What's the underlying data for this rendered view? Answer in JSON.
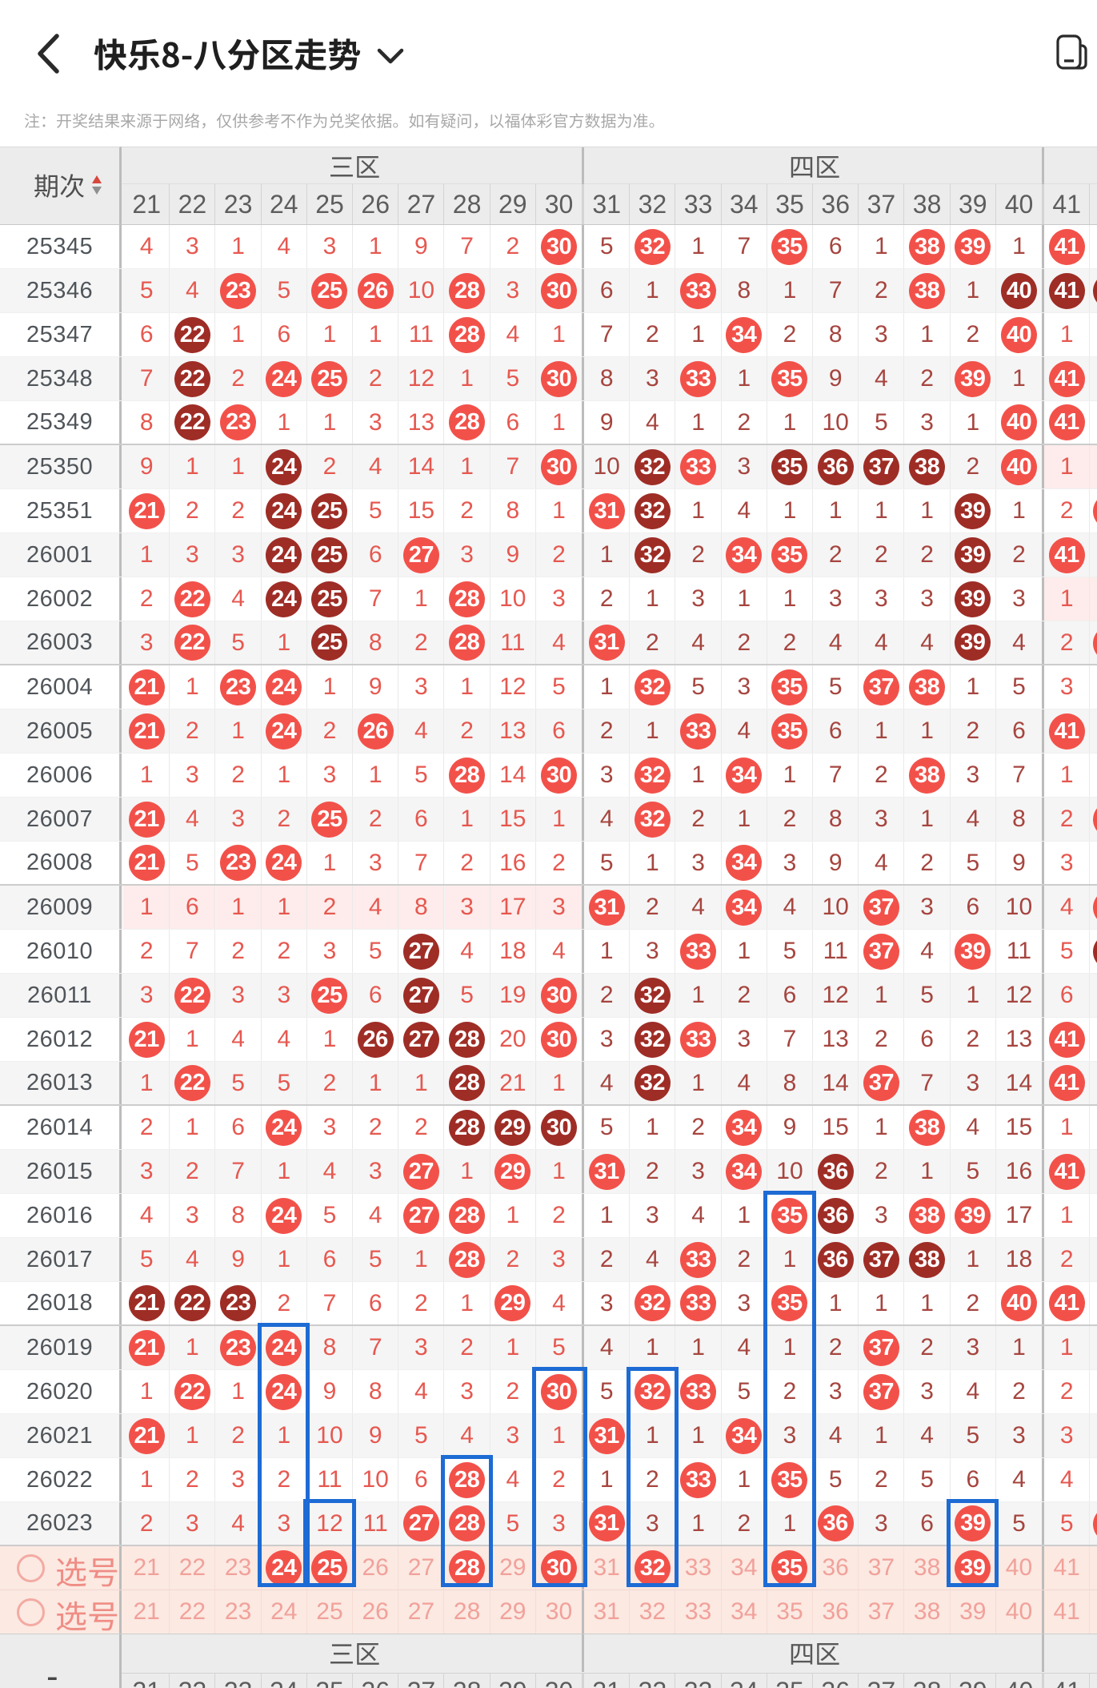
{
  "header": {
    "title": "快乐8-八分区走势",
    "back_icon": "chevron-left",
    "title_dropdown_icon": "chevron-down",
    "screen_cast_icon": "multi-screen"
  },
  "notice": "注：开奖结果来源于网络，仅供参考不作为兑奖依据。如有疑问，以福体彩官方数据为准。",
  "colors": {
    "ball_bright": "#f2514a",
    "ball_dark": "#9e2d26",
    "miss_zone_odd": "#e65850",
    "miss_zone_even": "#a6453f",
    "selection_blue": "#1d6bd4",
    "empty_zone_pink": "#fdeceb",
    "pick_row_pink": "#fbe9e2",
    "pick_text_pink": "#f1a19a"
  },
  "chart_data": {
    "type": "table",
    "title": "快乐8-八分区走势",
    "period_header": "期次",
    "zone_headers": [
      {
        "label": "三区",
        "columns": [
          21,
          22,
          23,
          24,
          25,
          26,
          27,
          28,
          29,
          30
        ]
      },
      {
        "label": "四区",
        "columns": [
          31,
          32,
          33,
          34,
          35,
          36,
          37,
          38,
          39,
          40
        ]
      },
      {
        "label": "",
        "columns": [
          41
        ]
      }
    ],
    "number_columns": [
      21,
      22,
      23,
      24,
      25,
      26,
      27,
      28,
      29,
      30,
      31,
      32,
      33,
      34,
      35,
      36,
      37,
      38,
      39,
      40,
      41
    ],
    "cell_legend": {
      "B": "drawn-ball-bright-red",
      "D": "drawn-ball-dark-red",
      "numeric": "miss-count"
    },
    "rows": [
      {
        "period": "25345",
        "cells": [
          "4",
          "3",
          "1",
          "4",
          "3",
          "1",
          "9",
          "7",
          "2",
          "B",
          "5",
          "B",
          "1",
          "7",
          "B",
          "6",
          "1",
          "B",
          "B",
          "1",
          "B"
        ],
        "overflow_ball": null,
        "empty_zones": []
      },
      {
        "period": "25346",
        "cells": [
          "5",
          "4",
          "B",
          "5",
          "B",
          "B",
          "10",
          "B",
          "3",
          "B",
          "6",
          "1",
          "B",
          "8",
          "1",
          "7",
          "2",
          "B",
          "1",
          "D",
          "D"
        ],
        "overflow_ball": "D",
        "empty_zones": []
      },
      {
        "period": "25347",
        "cells": [
          "6",
          "D",
          "1",
          "6",
          "1",
          "1",
          "11",
          "B",
          "4",
          "1",
          "7",
          "2",
          "1",
          "B",
          "2",
          "8",
          "3",
          "1",
          "2",
          "B",
          "1"
        ],
        "overflow_ball": null,
        "empty_zones": []
      },
      {
        "period": "25348",
        "cells": [
          "7",
          "D",
          "2",
          "B",
          "B",
          "2",
          "12",
          "1",
          "5",
          "B",
          "8",
          "3",
          "B",
          "1",
          "B",
          "9",
          "4",
          "2",
          "B",
          "1",
          "B"
        ],
        "overflow_ball": null,
        "empty_zones": []
      },
      {
        "period": "25349",
        "cells": [
          "8",
          "D",
          "B",
          "1",
          "1",
          "3",
          "13",
          "B",
          "6",
          "1",
          "9",
          "4",
          "1",
          "2",
          "1",
          "10",
          "5",
          "3",
          "1",
          "B",
          "B"
        ],
        "overflow_ball": null,
        "empty_zones": []
      },
      {
        "period": "25350",
        "cells": [
          "9",
          "1",
          "1",
          "D",
          "2",
          "4",
          "14",
          "1",
          "7",
          "B",
          "10",
          "D",
          "B",
          "3",
          "D",
          "D",
          "D",
          "D",
          "2",
          "B",
          "1"
        ],
        "overflow_ball": null,
        "empty_zones": [
          2
        ]
      },
      {
        "period": "25351",
        "cells": [
          "B",
          "2",
          "2",
          "D",
          "D",
          "5",
          "15",
          "2",
          "8",
          "1",
          "B",
          "D",
          "1",
          "4",
          "1",
          "1",
          "1",
          "1",
          "D",
          "1",
          "2"
        ],
        "overflow_ball": "B",
        "empty_zones": []
      },
      {
        "period": "26001",
        "cells": [
          "1",
          "3",
          "3",
          "D",
          "D",
          "6",
          "B",
          "3",
          "9",
          "2",
          "1",
          "D",
          "2",
          "B",
          "B",
          "2",
          "2",
          "2",
          "D",
          "2",
          "B"
        ],
        "overflow_ball": null,
        "empty_zones": []
      },
      {
        "period": "26002",
        "cells": [
          "2",
          "B",
          "4",
          "D",
          "D",
          "7",
          "1",
          "B",
          "10",
          "3",
          "2",
          "1",
          "3",
          "1",
          "1",
          "3",
          "3",
          "3",
          "D",
          "3",
          "1"
        ],
        "overflow_ball": null,
        "empty_zones": [
          2
        ]
      },
      {
        "period": "26003",
        "cells": [
          "3",
          "B",
          "5",
          "1",
          "D",
          "8",
          "2",
          "B",
          "11",
          "4",
          "B",
          "2",
          "4",
          "2",
          "2",
          "4",
          "4",
          "4",
          "D",
          "4",
          "2"
        ],
        "overflow_ball": "B",
        "empty_zones": []
      },
      {
        "period": "26004",
        "cells": [
          "B",
          "1",
          "B",
          "B",
          "1",
          "9",
          "3",
          "1",
          "12",
          "5",
          "1",
          "B",
          "5",
          "3",
          "B",
          "5",
          "B",
          "B",
          "1",
          "5",
          "3"
        ],
        "overflow_ball": null,
        "empty_zones": []
      },
      {
        "period": "26005",
        "cells": [
          "B",
          "2",
          "1",
          "B",
          "2",
          "B",
          "4",
          "2",
          "13",
          "6",
          "2",
          "1",
          "B",
          "4",
          "B",
          "6",
          "1",
          "1",
          "2",
          "6",
          "B"
        ],
        "overflow_ball": null,
        "empty_zones": []
      },
      {
        "period": "26006",
        "cells": [
          "1",
          "3",
          "2",
          "1",
          "3",
          "1",
          "5",
          "B",
          "14",
          "B",
          "3",
          "B",
          "1",
          "B",
          "1",
          "7",
          "2",
          "B",
          "3",
          "7",
          "1"
        ],
        "overflow_ball": null,
        "empty_zones": []
      },
      {
        "period": "26007",
        "cells": [
          "B",
          "4",
          "3",
          "2",
          "B",
          "2",
          "6",
          "1",
          "15",
          "1",
          "4",
          "B",
          "2",
          "1",
          "2",
          "8",
          "3",
          "1",
          "4",
          "8",
          "2"
        ],
        "overflow_ball": "B",
        "empty_zones": []
      },
      {
        "period": "26008",
        "cells": [
          "B",
          "5",
          "B",
          "B",
          "1",
          "3",
          "7",
          "2",
          "16",
          "2",
          "5",
          "1",
          "3",
          "B",
          "3",
          "9",
          "4",
          "2",
          "5",
          "9",
          "3"
        ],
        "overflow_ball": null,
        "empty_zones": []
      },
      {
        "period": "26009",
        "cells": [
          "1",
          "6",
          "1",
          "1",
          "2",
          "4",
          "8",
          "3",
          "17",
          "3",
          "B",
          "2",
          "4",
          "B",
          "4",
          "10",
          "B",
          "3",
          "6",
          "10",
          "4"
        ],
        "overflow_ball": "B",
        "empty_zones": [
          0
        ]
      },
      {
        "period": "26010",
        "cells": [
          "2",
          "7",
          "2",
          "2",
          "3",
          "5",
          "D",
          "4",
          "18",
          "4",
          "1",
          "3",
          "B",
          "1",
          "5",
          "11",
          "B",
          "4",
          "B",
          "11",
          "5"
        ],
        "overflow_ball": "D",
        "empty_zones": []
      },
      {
        "period": "26011",
        "cells": [
          "3",
          "B",
          "3",
          "3",
          "B",
          "6",
          "D",
          "5",
          "19",
          "B",
          "2",
          "D",
          "1",
          "2",
          "6",
          "12",
          "1",
          "5",
          "1",
          "12",
          "6"
        ],
        "overflow_ball": null,
        "empty_zones": []
      },
      {
        "period": "26012",
        "cells": [
          "B",
          "1",
          "4",
          "4",
          "1",
          "D",
          "D",
          "D",
          "20",
          "B",
          "3",
          "D",
          "B",
          "3",
          "7",
          "13",
          "2",
          "6",
          "2",
          "13",
          "B"
        ],
        "overflow_ball": null,
        "empty_zones": []
      },
      {
        "period": "26013",
        "cells": [
          "1",
          "B",
          "5",
          "5",
          "2",
          "1",
          "1",
          "D",
          "21",
          "1",
          "4",
          "D",
          "1",
          "4",
          "8",
          "14",
          "B",
          "7",
          "3",
          "14",
          "B"
        ],
        "overflow_ball": null,
        "empty_zones": []
      },
      {
        "period": "26014",
        "cells": [
          "2",
          "1",
          "6",
          "B",
          "3",
          "2",
          "2",
          "D",
          "D",
          "D",
          "5",
          "1",
          "2",
          "B",
          "9",
          "15",
          "1",
          "B",
          "4",
          "15",
          "1"
        ],
        "overflow_ball": null,
        "empty_zones": []
      },
      {
        "period": "26015",
        "cells": [
          "3",
          "2",
          "7",
          "1",
          "4",
          "3",
          "B",
          "1",
          "B",
          "1",
          "B",
          "2",
          "3",
          "B",
          "10",
          "D",
          "2",
          "1",
          "5",
          "16",
          "B"
        ],
        "overflow_ball": null,
        "empty_zones": []
      },
      {
        "period": "26016",
        "cells": [
          "4",
          "3",
          "8",
          "B",
          "5",
          "4",
          "B",
          "B",
          "1",
          "2",
          "1",
          "3",
          "4",
          "1",
          "B",
          "D",
          "3",
          "B",
          "B",
          "17",
          "1"
        ],
        "overflow_ball": null,
        "empty_zones": []
      },
      {
        "period": "26017",
        "cells": [
          "5",
          "4",
          "9",
          "1",
          "6",
          "5",
          "1",
          "B",
          "2",
          "3",
          "2",
          "4",
          "B",
          "2",
          "1",
          "D",
          "D",
          "D",
          "1",
          "18",
          "2"
        ],
        "overflow_ball": null,
        "empty_zones": []
      },
      {
        "period": "26018",
        "cells": [
          "D",
          "D",
          "D",
          "2",
          "7",
          "6",
          "2",
          "1",
          "B",
          "4",
          "3",
          "B",
          "B",
          "3",
          "B",
          "1",
          "1",
          "1",
          "2",
          "B",
          "B"
        ],
        "overflow_ball": null,
        "empty_zones": []
      },
      {
        "period": "26019",
        "cells": [
          "B",
          "1",
          "B",
          "B",
          "8",
          "7",
          "3",
          "2",
          "1",
          "5",
          "4",
          "1",
          "1",
          "4",
          "1",
          "2",
          "B",
          "2",
          "3",
          "1",
          "1"
        ],
        "overflow_ball": null,
        "empty_zones": []
      },
      {
        "period": "26020",
        "cells": [
          "1",
          "B",
          "1",
          "B",
          "9",
          "8",
          "4",
          "3",
          "2",
          "B",
          "5",
          "B",
          "B",
          "5",
          "2",
          "3",
          "B",
          "3",
          "4",
          "2",
          "2"
        ],
        "overflow_ball": null,
        "empty_zones": []
      },
      {
        "period": "26021",
        "cells": [
          "B",
          "1",
          "2",
          "1",
          "10",
          "9",
          "5",
          "4",
          "3",
          "1",
          "B",
          "1",
          "1",
          "B",
          "3",
          "4",
          "1",
          "4",
          "5",
          "3",
          "3"
        ],
        "overflow_ball": null,
        "empty_zones": []
      },
      {
        "period": "26022",
        "cells": [
          "1",
          "2",
          "3",
          "2",
          "11",
          "10",
          "6",
          "B",
          "4",
          "2",
          "1",
          "2",
          "B",
          "1",
          "B",
          "5",
          "2",
          "5",
          "6",
          "4",
          "4"
        ],
        "overflow_ball": null,
        "empty_zones": []
      },
      {
        "period": "26023",
        "cells": [
          "2",
          "3",
          "4",
          "3",
          "12",
          "11",
          "B",
          "B",
          "5",
          "3",
          "B",
          "3",
          "1",
          "2",
          "1",
          "B",
          "3",
          "6",
          "B",
          "5",
          "5"
        ],
        "overflow_ball": "B",
        "empty_zones": []
      }
    ],
    "pick_rows": [
      {
        "label": "选号",
        "selected_numbers": [
          24,
          25,
          28,
          30,
          32,
          35,
          39
        ]
      },
      {
        "label": "选号",
        "selected_numbers": []
      }
    ],
    "selection_boxes": [
      {
        "column": 24,
        "from_period": "26019"
      },
      {
        "column": 25,
        "from_period": "26023"
      },
      {
        "column": 28,
        "from_period": "26022"
      },
      {
        "column": 30,
        "from_period": "26020"
      },
      {
        "column": 32,
        "from_period": "26020"
      },
      {
        "column": 35,
        "from_period": "26016"
      },
      {
        "column": 39,
        "from_period": "26023"
      }
    ],
    "footer_zone_headers": [
      "三区",
      "四区"
    ],
    "footer_period_placeholder": "-",
    "sort_icon": "period-sort"
  }
}
